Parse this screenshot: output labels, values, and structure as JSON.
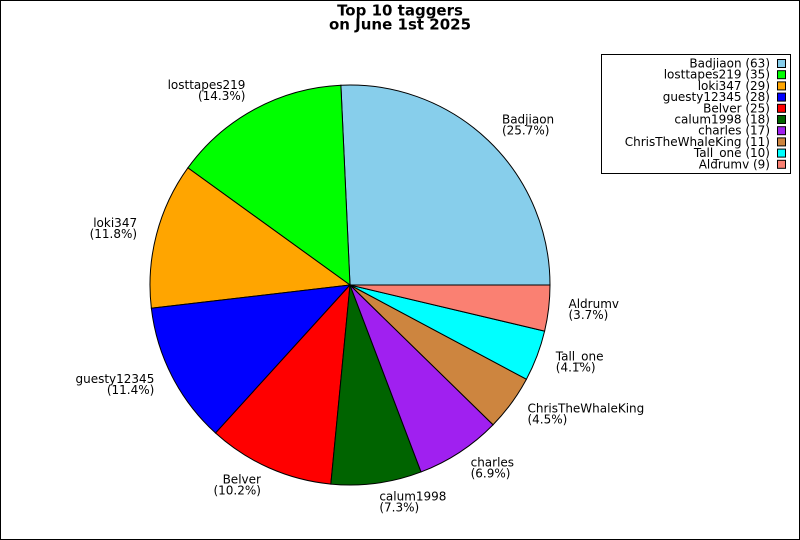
{
  "chart_data": {
    "type": "pie",
    "title": [
      "Top 10 taggers",
      "on June 1st 2025"
    ],
    "categories": [
      "Badjiaon",
      "losttapes219",
      "loki347",
      "guesty12345",
      "Belver",
      "calum1998",
      "charles",
      "ChrisTheWhaleKing",
      "Tall_one",
      "Aldrumv"
    ],
    "values": [
      25.7,
      14.3,
      11.8,
      11.4,
      10.2,
      7.3,
      6.9,
      4.5,
      4.1,
      3.7
    ],
    "value_labels": [
      "(25.7%)",
      "(14.3%)",
      "(11.8%)",
      "(11.4%)",
      "(10.2%)",
      "(7.3%)",
      "(6.9%)",
      "(4.5%)",
      "(4.1%)",
      "(3.7%)"
    ],
    "legend_labels": [
      "Badjiaon (63)",
      "losttapes219 (35)",
      "loki347 (29)",
      "guesty12345 (28)",
      "Belver (25)",
      "calum1998 (18)",
      "charles (17)",
      "ChrisTheWhaleKing (11)",
      "Tall_one (10)",
      "Aldrumv (9)"
    ],
    "colors": [
      "#87ceeb",
      "#00ff00",
      "#ffa500",
      "#0000ff",
      "#ff0000",
      "#006400",
      "#a020f0",
      "#cd853f",
      "#00ffff",
      "#fa8072"
    ],
    "legend": "upper right"
  }
}
